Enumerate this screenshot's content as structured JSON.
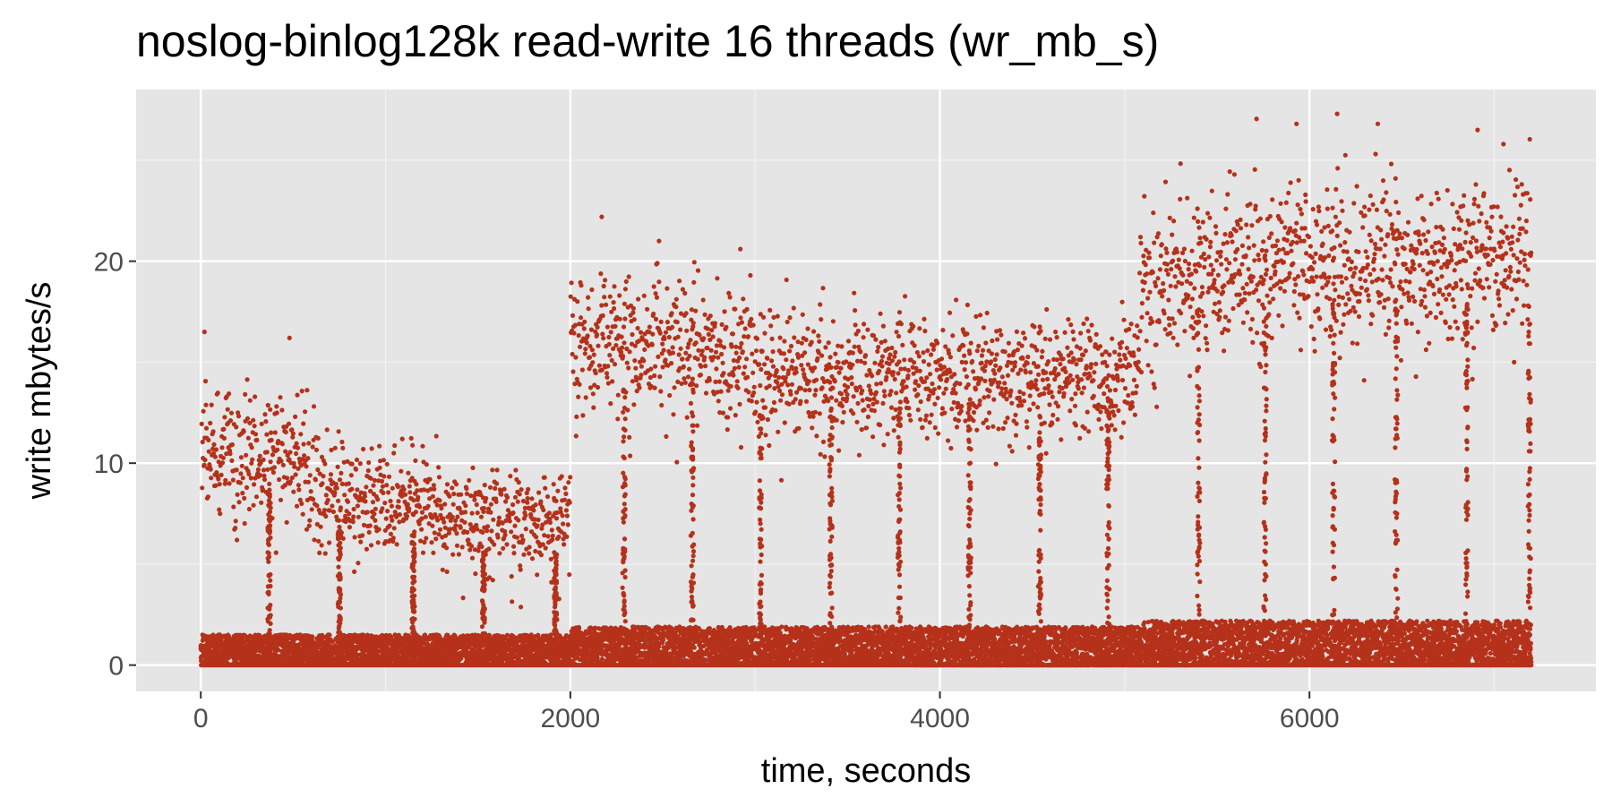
{
  "chart_data": {
    "type": "scatter",
    "title": "noslog-binlog128k read-write 16 threads (wr_mb_s)",
    "xlabel": "time, seconds",
    "ylabel": "write mbytes/s",
    "xlim": [
      -350,
      7550
    ],
    "ylim": [
      -1.3,
      28.5
    ],
    "x_ticks": [
      0,
      2000,
      4000,
      6000
    ],
    "x_tick_labels": [
      "0",
      "2000",
      "4000",
      "6000"
    ],
    "x_minor_ticks": [
      1000,
      3000,
      5000,
      7000
    ],
    "y_ticks": [
      0,
      10,
      20
    ],
    "y_tick_labels": [
      "0",
      "10",
      "20"
    ],
    "y_minor_ticks": [
      5,
      15,
      25
    ],
    "grid": true,
    "legend": "none",
    "point_color": "#b5311a",
    "panel_background": "#e5e5e5",
    "series": [
      {
        "name": "wr_mb_s",
        "summary": "one point per second over 0–7200 s; a dense band near 0–2 MB/s throughout plus an upper cloud",
        "upper_cloud_segments": [
          {
            "x_start": 0,
            "x_end": 600,
            "y_start": 10.5,
            "y_end": 10.0,
            "spread": 1.6
          },
          {
            "x_start": 600,
            "x_end": 1300,
            "y_start": 8.5,
            "y_end": 7.8,
            "spread": 1.3
          },
          {
            "x_start": 1300,
            "x_end": 2000,
            "y_start": 7.2,
            "y_end": 7.0,
            "spread": 1.3
          },
          {
            "x_start": 2000,
            "x_end": 3000,
            "y_start": 16.0,
            "y_end": 15.0,
            "spread": 1.8
          },
          {
            "x_start": 3000,
            "x_end": 4000,
            "y_start": 14.5,
            "y_end": 14.0,
            "spread": 1.5
          },
          {
            "x_start": 4000,
            "x_end": 5080,
            "y_start": 14.0,
            "y_end": 14.5,
            "spread": 1.5
          },
          {
            "x_start": 5080,
            "x_end": 6000,
            "y_start": 18.5,
            "y_end": 20.0,
            "spread": 2.0
          },
          {
            "x_start": 6000,
            "x_end": 7200,
            "y_start": 19.5,
            "y_end": 20.0,
            "spread": 2.0
          }
        ],
        "dropout_times": [
          370,
          750,
          1150,
          1530,
          1920,
          2290,
          2660,
          3030,
          3410,
          3780,
          4160,
          4540,
          4910,
          5400,
          5760,
          6130,
          6470,
          6850,
          7190
        ],
        "outliers": [
          [
            20,
            16.5
          ],
          [
            480,
            16.2
          ],
          [
            2170,
            22.2
          ],
          [
            2480,
            21.0
          ],
          [
            2920,
            20.6
          ],
          [
            5930,
            26.8
          ],
          [
            6150,
            27.3
          ],
          [
            6370,
            26.8
          ],
          [
            6910,
            26.5
          ],
          [
            7050,
            25.8
          ]
        ]
      }
    ]
  }
}
